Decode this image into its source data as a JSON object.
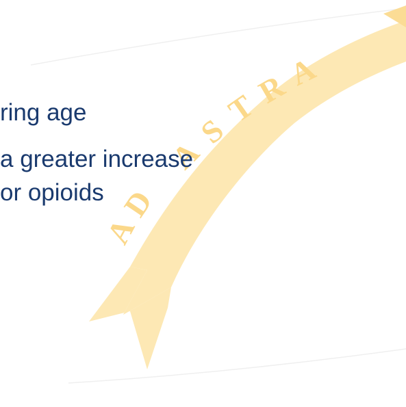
{
  "slide": {
    "bullet_lines": [
      "ring age",
      "a greater increase",
      "or opioids"
    ]
  },
  "watermark": {
    "text": "AD ASTRA",
    "fill_color": "#fde8b4",
    "band_color": "#fbdc95",
    "letter_color": "#fbe6b0"
  },
  "colors": {
    "text": "#1a3a6e",
    "background": "#ffffff"
  }
}
